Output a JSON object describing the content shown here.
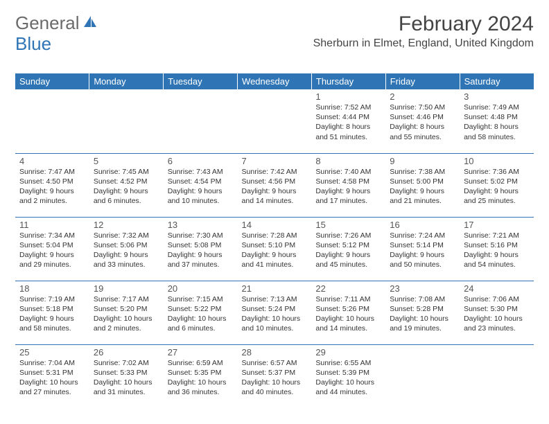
{
  "brand": {
    "part1": "General",
    "part2": "Blue"
  },
  "title": "February 2024",
  "location": "Sherburn in Elmet, England, United Kingdom",
  "colors": {
    "header_bg": "#2f75b5",
    "header_text": "#ffffff",
    "divider": "#2f75b5",
    "shaded_bg": "#eeeeee",
    "body_text": "#333333",
    "logo_gray": "#6b6b6b",
    "logo_blue": "#2f75b5"
  },
  "weekdays": [
    "Sunday",
    "Monday",
    "Tuesday",
    "Wednesday",
    "Thursday",
    "Friday",
    "Saturday"
  ],
  "weeks": [
    [
      null,
      null,
      null,
      null,
      {
        "n": "1",
        "sr": "7:52 AM",
        "ss": "4:44 PM",
        "dl": "8 hours and 51 minutes."
      },
      {
        "n": "2",
        "sr": "7:50 AM",
        "ss": "4:46 PM",
        "dl": "8 hours and 55 minutes."
      },
      {
        "n": "3",
        "sr": "7:49 AM",
        "ss": "4:48 PM",
        "dl": "8 hours and 58 minutes."
      }
    ],
    [
      {
        "n": "4",
        "sr": "7:47 AM",
        "ss": "4:50 PM",
        "dl": "9 hours and 2 minutes."
      },
      {
        "n": "5",
        "sr": "7:45 AM",
        "ss": "4:52 PM",
        "dl": "9 hours and 6 minutes."
      },
      {
        "n": "6",
        "sr": "7:43 AM",
        "ss": "4:54 PM",
        "dl": "9 hours and 10 minutes."
      },
      {
        "n": "7",
        "sr": "7:42 AM",
        "ss": "4:56 PM",
        "dl": "9 hours and 14 minutes."
      },
      {
        "n": "8",
        "sr": "7:40 AM",
        "ss": "4:58 PM",
        "dl": "9 hours and 17 minutes."
      },
      {
        "n": "9",
        "sr": "7:38 AM",
        "ss": "5:00 PM",
        "dl": "9 hours and 21 minutes."
      },
      {
        "n": "10",
        "sr": "7:36 AM",
        "ss": "5:02 PM",
        "dl": "9 hours and 25 minutes."
      }
    ],
    [
      {
        "n": "11",
        "sr": "7:34 AM",
        "ss": "5:04 PM",
        "dl": "9 hours and 29 minutes."
      },
      {
        "n": "12",
        "sr": "7:32 AM",
        "ss": "5:06 PM",
        "dl": "9 hours and 33 minutes."
      },
      {
        "n": "13",
        "sr": "7:30 AM",
        "ss": "5:08 PM",
        "dl": "9 hours and 37 minutes."
      },
      {
        "n": "14",
        "sr": "7:28 AM",
        "ss": "5:10 PM",
        "dl": "9 hours and 41 minutes."
      },
      {
        "n": "15",
        "sr": "7:26 AM",
        "ss": "5:12 PM",
        "dl": "9 hours and 45 minutes."
      },
      {
        "n": "16",
        "sr": "7:24 AM",
        "ss": "5:14 PM",
        "dl": "9 hours and 50 minutes."
      },
      {
        "n": "17",
        "sr": "7:21 AM",
        "ss": "5:16 PM",
        "dl": "9 hours and 54 minutes."
      }
    ],
    [
      {
        "n": "18",
        "sr": "7:19 AM",
        "ss": "5:18 PM",
        "dl": "9 hours and 58 minutes."
      },
      {
        "n": "19",
        "sr": "7:17 AM",
        "ss": "5:20 PM",
        "dl": "10 hours and 2 minutes."
      },
      {
        "n": "20",
        "sr": "7:15 AM",
        "ss": "5:22 PM",
        "dl": "10 hours and 6 minutes."
      },
      {
        "n": "21",
        "sr": "7:13 AM",
        "ss": "5:24 PM",
        "dl": "10 hours and 10 minutes."
      },
      {
        "n": "22",
        "sr": "7:11 AM",
        "ss": "5:26 PM",
        "dl": "10 hours and 14 minutes."
      },
      {
        "n": "23",
        "sr": "7:08 AM",
        "ss": "5:28 PM",
        "dl": "10 hours and 19 minutes."
      },
      {
        "n": "24",
        "sr": "7:06 AM",
        "ss": "5:30 PM",
        "dl": "10 hours and 23 minutes."
      }
    ],
    [
      {
        "n": "25",
        "sr": "7:04 AM",
        "ss": "5:31 PM",
        "dl": "10 hours and 27 minutes."
      },
      {
        "n": "26",
        "sr": "7:02 AM",
        "ss": "5:33 PM",
        "dl": "10 hours and 31 minutes."
      },
      {
        "n": "27",
        "sr": "6:59 AM",
        "ss": "5:35 PM",
        "dl": "10 hours and 36 minutes."
      },
      {
        "n": "28",
        "sr": "6:57 AM",
        "ss": "5:37 PM",
        "dl": "10 hours and 40 minutes."
      },
      {
        "n": "29",
        "sr": "6:55 AM",
        "ss": "5:39 PM",
        "dl": "10 hours and 44 minutes."
      },
      null,
      null
    ]
  ],
  "labels": {
    "sunrise": "Sunrise:",
    "sunset": "Sunset:",
    "daylight": "Daylight:"
  },
  "shaded_rows": [
    2,
    4
  ]
}
